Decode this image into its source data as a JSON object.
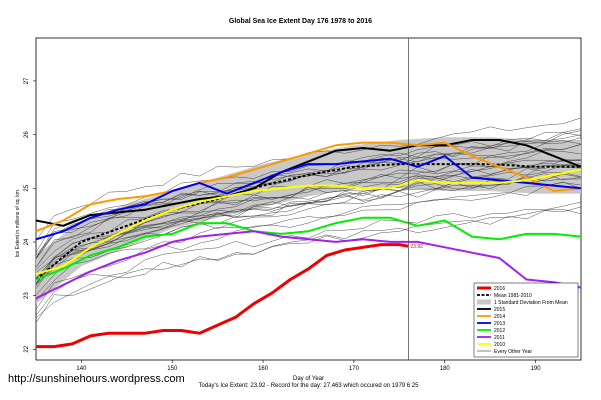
{
  "watermark": "http://sunshinehours.wordpress.com",
  "footer": "Today's Ice Extent: 23.92  - Record for the day: 27.463 which occured on 1979 6 25",
  "chart_data": {
    "type": "line",
    "title": "Global Sea Ice Extent Day 176 1978 to 2016",
    "xlabel": "Day of Year",
    "ylabel": "Ice Extent in millions of sq. km.",
    "xlim": [
      135,
      195
    ],
    "ylim": [
      21.8,
      27.8
    ],
    "x_ticks": [
      140,
      150,
      160,
      170,
      180,
      190
    ],
    "y_ticks": [
      22,
      23,
      24,
      25,
      26,
      27
    ],
    "vline_day": 176,
    "today_value_label": "23.92",
    "grid": false,
    "legend_position": "bottom-right",
    "legend": [
      {
        "label": "2016",
        "color": "#ee0000",
        "style": "thick"
      },
      {
        "label": "Mean 1981-2010",
        "color": "#000000",
        "style": "dashed"
      },
      {
        "label": "1 Standard Deviation From Mean",
        "color": "#c8c8c8",
        "style": "band"
      },
      {
        "label": "2015",
        "color": "#000000",
        "style": "solid"
      },
      {
        "label": "2014",
        "color": "#ff9900",
        "style": "solid"
      },
      {
        "label": "2013",
        "color": "#0000ee",
        "style": "solid"
      },
      {
        "label": "2012",
        "color": "#00ee00",
        "style": "solid"
      },
      {
        "label": "2011",
        "color": "#a020f0",
        "style": "solid"
      },
      {
        "label": "2010",
        "color": "#ffff00",
        "style": "solid"
      },
      {
        "label": "Every Other Year",
        "color": "#333333",
        "style": "thin"
      }
    ],
    "series": [
      {
        "name": "Mean 1981-2010",
        "color": "#000000",
        "dash": true,
        "x": [
          135,
          140,
          145,
          150,
          155,
          160,
          165,
          170,
          175,
          180,
          185,
          190,
          195
        ],
        "y": [
          23.3,
          24.0,
          24.3,
          24.6,
          24.8,
          25.05,
          25.25,
          25.4,
          25.45,
          25.45,
          25.45,
          25.4,
          25.4
        ]
      },
      {
        "name": "2016",
        "color": "#ee0000",
        "width": 3,
        "x": [
          135,
          137,
          139,
          141,
          143,
          145,
          147,
          149,
          151,
          153,
          155,
          157,
          159,
          161,
          163,
          165,
          167,
          169,
          171,
          173,
          175,
          176
        ],
        "y": [
          22.05,
          22.05,
          22.1,
          22.25,
          22.3,
          22.3,
          22.3,
          22.35,
          22.35,
          22.3,
          22.45,
          22.6,
          22.85,
          23.05,
          23.3,
          23.5,
          23.75,
          23.85,
          23.9,
          23.95,
          23.95,
          23.92
        ]
      },
      {
        "name": "2015",
        "color": "#000000",
        "width": 2,
        "x": [
          135,
          138,
          141,
          144,
          147,
          150,
          153,
          156,
          159,
          162,
          165,
          168,
          171,
          174,
          177,
          180,
          183,
          186,
          189,
          192,
          195
        ],
        "y": [
          24.4,
          24.3,
          24.5,
          24.55,
          24.6,
          24.7,
          24.8,
          24.85,
          25.0,
          25.3,
          25.5,
          25.7,
          25.75,
          25.7,
          25.8,
          25.8,
          25.9,
          25.9,
          25.8,
          25.6,
          25.4
        ]
      },
      {
        "name": "2014",
        "color": "#ff9900",
        "width": 2,
        "x": [
          135,
          138,
          141,
          144,
          147,
          150,
          153,
          156,
          159,
          162,
          165,
          168,
          171,
          174,
          177,
          180,
          183,
          186,
          189,
          192,
          195
        ],
        "y": [
          24.2,
          24.4,
          24.7,
          24.8,
          24.85,
          24.95,
          25.1,
          25.2,
          25.35,
          25.5,
          25.65,
          25.8,
          25.85,
          25.85,
          25.8,
          25.85,
          25.6,
          25.4,
          25.2,
          24.95,
          25.0
        ]
      },
      {
        "name": "2013",
        "color": "#0000ee",
        "width": 2,
        "x": [
          135,
          138,
          141,
          144,
          147,
          150,
          153,
          156,
          159,
          162,
          165,
          168,
          171,
          174,
          177,
          180,
          183,
          186,
          189,
          192,
          195
        ],
        "y": [
          24.05,
          24.2,
          24.45,
          24.6,
          24.7,
          24.95,
          25.1,
          24.9,
          25.1,
          25.3,
          25.45,
          25.45,
          25.5,
          25.55,
          25.4,
          25.6,
          25.2,
          25.15,
          25.1,
          25.05,
          25.0
        ]
      },
      {
        "name": "2012",
        "color": "#00ee00",
        "width": 2,
        "x": [
          135,
          138,
          141,
          144,
          147,
          150,
          153,
          156,
          159,
          162,
          165,
          168,
          171,
          174,
          177,
          180,
          183,
          186,
          189,
          192,
          195
        ],
        "y": [
          23.3,
          23.5,
          23.75,
          23.9,
          24.1,
          24.15,
          24.35,
          24.35,
          24.2,
          24.15,
          24.2,
          24.35,
          24.45,
          24.45,
          24.3,
          24.4,
          24.1,
          24.05,
          24.15,
          24.15,
          24.1
        ]
      },
      {
        "name": "2011",
        "color": "#a020f0",
        "width": 2,
        "x": [
          135,
          138,
          141,
          144,
          147,
          150,
          153,
          156,
          159,
          162,
          165,
          168,
          171,
          174,
          177,
          180,
          183,
          186,
          189,
          192,
          195
        ],
        "y": [
          22.95,
          23.2,
          23.45,
          23.65,
          23.8,
          24.0,
          24.1,
          24.15,
          24.2,
          24.1,
          24.05,
          24.0,
          24.05,
          24.0,
          24.0,
          23.9,
          23.8,
          23.7,
          23.3,
          23.25,
          23.15
        ]
      },
      {
        "name": "2010",
        "color": "#ffff00",
        "width": 2,
        "x": [
          135,
          138,
          141,
          144,
          147,
          150,
          153,
          156,
          159,
          162,
          165,
          168,
          171,
          174,
          177,
          180,
          183,
          186,
          189,
          192,
          195
        ],
        "y": [
          23.4,
          23.55,
          23.9,
          24.15,
          24.4,
          24.6,
          24.75,
          24.85,
          24.95,
          25.0,
          25.05,
          25.05,
          25.0,
          25.0,
          25.15,
          25.1,
          25.1,
          25.1,
          25.15,
          25.25,
          25.35
        ]
      }
    ],
    "std_band": {
      "x": [
        135,
        140,
        145,
        150,
        155,
        160,
        165,
        170,
        175,
        180,
        185,
        190,
        195
      ],
      "upper": [
        23.75,
        24.4,
        24.7,
        24.95,
        25.2,
        25.45,
        25.65,
        25.8,
        25.9,
        25.95,
        25.95,
        25.9,
        25.9
      ],
      "lower": [
        22.85,
        23.55,
        23.9,
        24.25,
        24.45,
        24.65,
        24.85,
        25.0,
        25.0,
        24.95,
        24.95,
        24.9,
        24.9
      ]
    }
  }
}
